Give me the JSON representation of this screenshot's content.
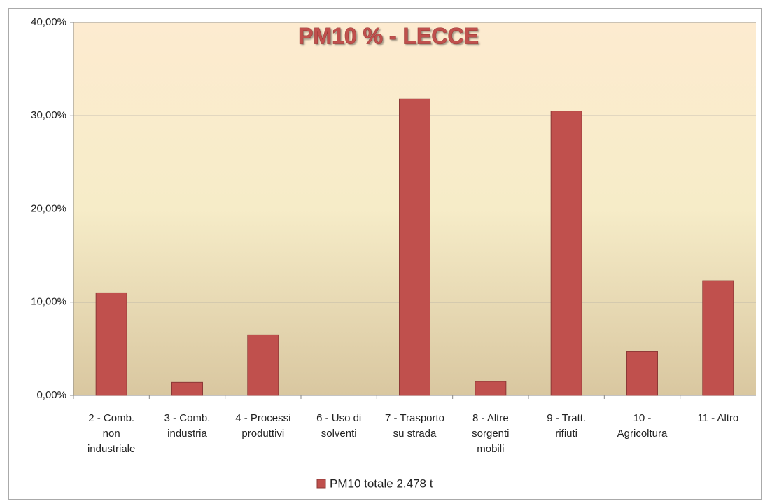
{
  "chart_data": {
    "type": "bar",
    "title": "PM10 %  - LECCE",
    "categories": [
      "2 - Comb.\nnon\nindustriale",
      "3 - Comb.\nindustria",
      "4 - Processi\nproduttivi",
      "6 - Uso di\nsolventi",
      "7 - Trasporto\nsu strada",
      "8 - Altre\nsorgenti\nmobili",
      "9 - Tratt.\nrifiuti",
      "10 -\nAgricoltura",
      "11 - Altro"
    ],
    "series": [
      {
        "name": "PM10 totale 2.478 t",
        "color": "#c0504d",
        "values": [
          11.0,
          1.4,
          6.5,
          0,
          31.8,
          1.5,
          30.5,
          4.7,
          12.3
        ]
      }
    ],
    "ylim": [
      0,
      40
    ],
    "yticks": [
      {
        "value": 0,
        "label": "0,00%"
      },
      {
        "value": 10,
        "label": "10,00%"
      },
      {
        "value": 20,
        "label": "20,00%"
      },
      {
        "value": 30,
        "label": "30,00%"
      },
      {
        "value": 40,
        "label": "40,00%"
      }
    ],
    "grid": true,
    "legend": "bottom"
  }
}
